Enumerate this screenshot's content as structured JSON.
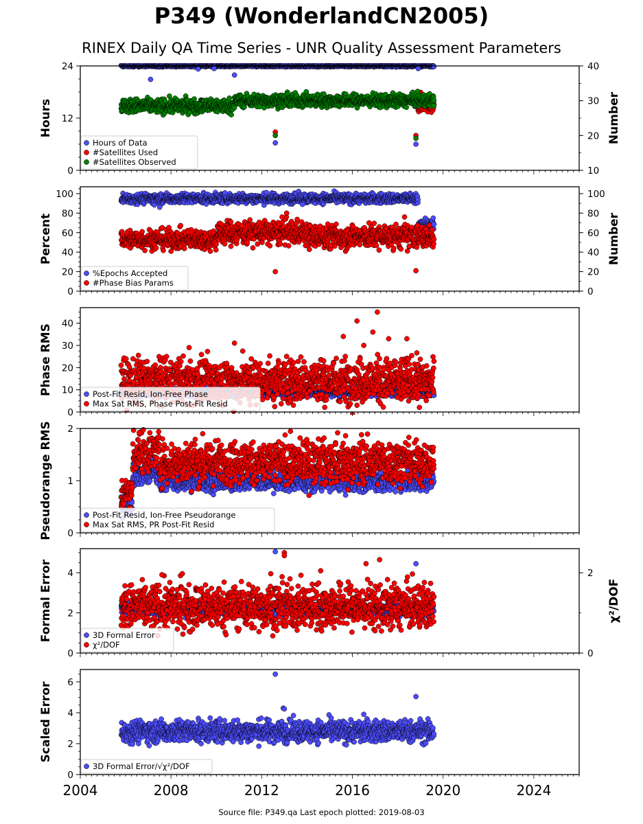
{
  "title": "P349 (WonderlandCN2005)",
  "subtitle": "RINEX Daily QA Time Series - UNR Quality Assessment Parameters",
  "source_text": "Source file: P349.qa Last epoch plotted: 2019-08-03",
  "colors": {
    "blue": "#4d4dff",
    "red": "#ff0000",
    "green": "#008000",
    "black_fill": "#000080"
  },
  "chart_data": [
    {
      "type": "scatter",
      "ylabel": "Hours",
      "y2label": "Number",
      "ylim": [
        0,
        24
      ],
      "y2lim": [
        10,
        40
      ],
      "yticks": [
        0,
        12,
        24
      ],
      "y2ticks": [
        10,
        20,
        30,
        40
      ],
      "x_range": [
        2004,
        2026
      ],
      "legend": "lower-left",
      "series": [
        {
          "name": "Hours of Data",
          "color": "#4d4dff",
          "axis": "left",
          "start": 2005.8,
          "end": 2019.6,
          "segments": [
            {
              "start": 2005.8,
              "end": 2019.6,
              "base": 24,
              "noise": 0.1
            }
          ],
          "outliers": [
            [
              2007.1,
              20.9
            ],
            [
              2009.2,
              23.3
            ],
            [
              2009.9,
              23.4
            ],
            [
              2010.8,
              21.9
            ],
            [
              2012.6,
              6.3
            ],
            [
              2018.8,
              6.0
            ],
            [
              2018.9,
              23.4
            ]
          ]
        },
        {
          "name": "#Satellites Used",
          "color": "#ff0000",
          "axis": "right",
          "start": 2018.9,
          "end": 2019.6,
          "segments": [
            {
              "start": 2018.9,
              "end": 2019.6,
              "base": 29.5,
              "noise": 1.2
            }
          ],
          "outliers": [
            [
              2012.6,
              21.0
            ],
            [
              2018.8,
              20.0
            ],
            [
              2018.9,
              32.0
            ]
          ]
        },
        {
          "name": "#Satellites Observed",
          "color": "#008000",
          "axis": "right",
          "start": 2005.8,
          "end": 2019.6,
          "segments": [
            {
              "start": 2005.8,
              "end": 2010.8,
              "base": 28.5,
              "noise": 1.0
            },
            {
              "start": 2010.8,
              "end": 2019.6,
              "base": 30.0,
              "noise": 0.9
            }
          ],
          "outliers": [
            [
              2012.6,
              20.0
            ],
            [
              2018.8,
              19.2
            ]
          ]
        }
      ]
    },
    {
      "type": "scatter",
      "ylabel": "Percent",
      "y2label": "Number",
      "ylim": [
        0,
        107
      ],
      "y2lim": [
        0,
        107
      ],
      "yticks": [
        0,
        20,
        40,
        60,
        80,
        100
      ],
      "y2ticks": [
        0,
        20,
        40,
        60,
        80,
        100
      ],
      "x_range": [
        2004,
        2026
      ],
      "legend": "lower-left",
      "series": [
        {
          "name": "%Epochs Accepted",
          "color": "#4d4dff",
          "axis": "left",
          "start": 2005.8,
          "end": 2019.6,
          "segments": [
            {
              "start": 2005.8,
              "end": 2018.9,
              "base": 95,
              "noise": 2.5
            },
            {
              "start": 2018.9,
              "end": 2019.6,
              "base": 68,
              "noise": 3
            }
          ],
          "outliers": [
            [
              2007.5,
              86
            ],
            [
              2013.8,
              89
            ]
          ]
        },
        {
          "name": "#Phase Bias Params",
          "color": "#ff0000",
          "axis": "right",
          "start": 2005.8,
          "end": 2019.6,
          "segments": [
            {
              "start": 2005.8,
              "end": 2010.0,
              "base": 53,
              "noise": 5
            },
            {
              "start": 2010.0,
              "end": 2014.0,
              "base": 60,
              "noise": 6
            },
            {
              "start": 2014.0,
              "end": 2019.6,
              "base": 56,
              "noise": 6
            }
          ],
          "outliers": [
            [
              2012.6,
              20
            ],
            [
              2018.8,
              21
            ],
            [
              2012.9,
              76
            ],
            [
              2013.1,
              80
            ],
            [
              2018.3,
              76
            ]
          ]
        }
      ]
    },
    {
      "type": "scatter",
      "ylabel": "Phase RMS",
      "y2label": "",
      "ylim": [
        0,
        47
      ],
      "yticks": [
        0,
        10,
        20,
        30,
        40
      ],
      "x_range": [
        2004,
        2026
      ],
      "legend": "lower-left",
      "series": [
        {
          "name": "Post-Fit Resid, Ion-Free Phase",
          "color": "#4d4dff",
          "axis": "left",
          "start": 2005.8,
          "end": 2019.6,
          "segments": [
            {
              "start": 2005.8,
              "end": 2019.6,
              "base": 9,
              "noise": 1.0
            }
          ],
          "outliers": [
            [
              2019.5,
              10
            ]
          ]
        },
        {
          "name": "Max Sat RMS, Phase Post-Fit Resid",
          "color": "#ff0000",
          "axis": "left",
          "start": 2005.8,
          "end": 2019.6,
          "segments": [
            {
              "start": 2005.8,
              "end": 2019.6,
              "base": 14,
              "noise": 5
            }
          ],
          "outliers": [
            [
              2016.2,
              41
            ],
            [
              2017.1,
              45
            ],
            [
              2015.6,
              34
            ],
            [
              2016.9,
              36
            ],
            [
              2016.5,
              30
            ],
            [
              2017.6,
              33
            ],
            [
              2018.4,
              33
            ],
            [
              2010.8,
              31
            ],
            [
              2008.8,
              29
            ],
            [
              2013.1,
              25
            ]
          ]
        }
      ]
    },
    {
      "type": "scatter",
      "ylabel": "Pseudorange RMS",
      "y2label": "",
      "ylim": [
        0,
        2
      ],
      "yticks": [
        0,
        1,
        2
      ],
      "x_range": [
        2004,
        2026
      ],
      "legend": "lower-left",
      "series": [
        {
          "name": "Post-Fit Resid, Ion-Free Pseudorange",
          "color": "#4d4dff",
          "axis": "left",
          "start": 2005.8,
          "end": 2019.6,
          "segments": [
            {
              "start": 2005.8,
              "end": 2006.3,
              "base": 0.6,
              "noise": 0.12
            },
            {
              "start": 2006.3,
              "end": 2007.5,
              "base": 1.15,
              "noise": 0.12
            },
            {
              "start": 2007.5,
              "end": 2019.6,
              "base": 1.0,
              "noise": 0.1
            }
          ],
          "outliers": []
        },
        {
          "name": "Max Sat RMS, PR Post-Fit Resid",
          "color": "#ff0000",
          "axis": "left",
          "start": 2005.8,
          "end": 2019.6,
          "segments": [
            {
              "start": 2005.8,
              "end": 2006.3,
              "base": 0.75,
              "noise": 0.15
            },
            {
              "start": 2006.3,
              "end": 2007.5,
              "base": 1.55,
              "noise": 0.2
            },
            {
              "start": 2007.5,
              "end": 2019.6,
              "base": 1.35,
              "noise": 0.2
            }
          ],
          "outliers": [
            [
              2006.6,
              1.92
            ],
            [
              2009.4,
              1.9
            ],
            [
              2014.5,
              1.8
            ],
            [
              2015.7,
              1.86
            ],
            [
              2016.4,
              1.88
            ]
          ]
        }
      ]
    },
    {
      "type": "scatter",
      "ylabel": "Formal Error",
      "y2label": "χ²/DOF",
      "ylim": [
        0,
        5.2
      ],
      "y2lim": [
        0,
        2.6
      ],
      "yticks": [
        0,
        2,
        4
      ],
      "y2ticks": [
        0,
        2
      ],
      "x_range": [
        2004,
        2026
      ],
      "legend": "lower-left",
      "series": [
        {
          "name": "3D Formal Error",
          "color": "#4d4dff",
          "axis": "left",
          "start": 2005.8,
          "end": 2019.6,
          "segments": [
            {
              "start": 2005.8,
              "end": 2019.6,
              "base": 2.2,
              "noise": 0.15
            }
          ],
          "outliers": [
            [
              2012.6,
              5.05
            ],
            [
              2018.8,
              4.45
            ]
          ]
        },
        {
          "name": "χ²/DOF",
          "color": "#ff0000",
          "axis": "left",
          "start": 2005.8,
          "end": 2019.6,
          "segments": [
            {
              "start": 2005.8,
              "end": 2019.6,
              "base": 2.3,
              "noise": 0.55
            }
          ],
          "outliers": [
            [
              2013.0,
              5.0
            ],
            [
              2013.0,
              4.85
            ],
            [
              2016.6,
              4.45
            ],
            [
              2017.2,
              4.65
            ],
            [
              2012.4,
              3.95
            ],
            [
              2014.6,
              4.1
            ],
            [
              2007.6,
              3.9
            ],
            [
              2008.5,
              3.95
            ]
          ]
        }
      ]
    },
    {
      "type": "scatter",
      "ylabel": "Scaled Error",
      "y2label": "",
      "ylim": [
        0,
        6.8
      ],
      "yticks": [
        0,
        2,
        4,
        6
      ],
      "x_range": [
        2004,
        2026
      ],
      "legend": "lower-left",
      "series": [
        {
          "name": "3D Formal Error/√χ²/DOF",
          "color": "#4d4dff",
          "axis": "left",
          "start": 2005.8,
          "end": 2019.6,
          "segments": [
            {
              "start": 2005.8,
              "end": 2019.6,
              "base": 2.8,
              "noise": 0.35
            }
          ],
          "outliers": [
            [
              2012.6,
              6.5
            ],
            [
              2012.95,
              4.3
            ],
            [
              2013.0,
              4.25
            ],
            [
              2018.8,
              5.05
            ],
            [
              2016.5,
              3.9
            ]
          ]
        }
      ]
    }
  ],
  "xticks": [
    2004,
    2008,
    2012,
    2016,
    2020,
    2024
  ]
}
